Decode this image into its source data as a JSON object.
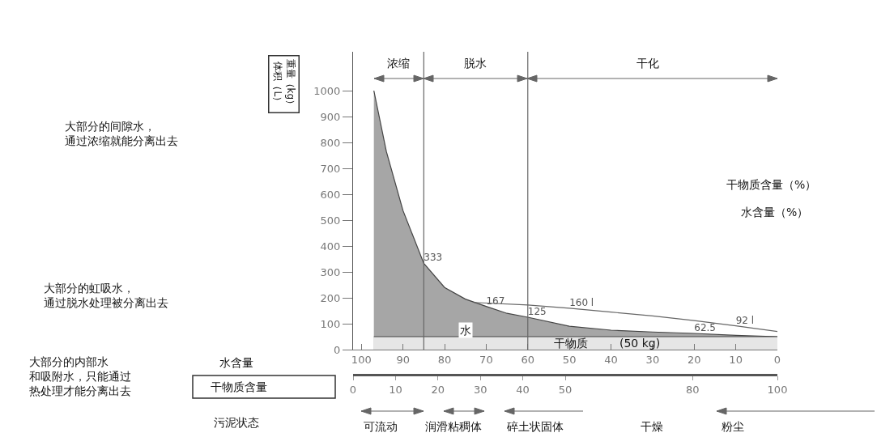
{
  "chart_data": {
    "type": "area",
    "xlabel": "水含量（%）",
    "x2label": "干物质含量（%）",
    "ylabel": "重量（kg）体积（L）",
    "xlim": [
      102,
      0
    ],
    "xticks": [
      100,
      90,
      80,
      70,
      60,
      50,
      40,
      30,
      20,
      10,
      0
    ],
    "x2lim": [
      0,
      100
    ],
    "x2ticks": [
      0,
      10,
      20,
      30,
      40,
      50,
      80,
      100
    ],
    "ylim": [
      0,
      1150
    ],
    "yticks": [
      0,
      100,
      200,
      300,
      400,
      500,
      600,
      700,
      800,
      900,
      1000
    ],
    "series": [
      {
        "color": "#a6a6a6",
        "x": [
          97,
          94,
          90,
          85,
          80,
          75,
          70,
          65,
          60,
          50,
          40,
          30,
          20,
          10,
          0
        ],
        "values": [
          1000,
          765,
          537,
          333,
          240,
          195,
          167,
          140,
          125,
          90,
          75,
          68,
          62.5,
          55,
          50
        ],
        "value_labels": [
          null,
          null,
          null,
          "333",
          null,
          null,
          "167",
          null,
          "125",
          null,
          null,
          null,
          "62.5",
          null,
          null
        ]
      },
      {
        "color": "#e6e6e6",
        "x": [
          97,
          0
        ],
        "values": [
          50,
          50
        ]
      },
      {
        "type": "line",
        "color": "#666666",
        "x": [
          73,
          60,
          50,
          40,
          30,
          20,
          10,
          0
        ],
        "values": [
          182,
          172,
          160,
          145,
          130,
          112,
          92,
          70
        ],
        "value_labels": [
          null,
          null,
          "160 l",
          null,
          null,
          null,
          "92 l",
          null
        ]
      }
    ],
    "ref_lines": [
      {
        "axis": "x",
        "value": 85
      },
      {
        "axis": "x",
        "value": 60
      }
    ],
    "annotations": [
      "大部分的间隙水，通过浓缩就能分离出去",
      "大部分的虹吸水，通过脱水处理被分离出去",
      "大部分的内部水和吸附水，只能通过热处理才能分离出去",
      "水含量",
      "干物质含量",
      "污泥状态",
      "干燥",
      "浓缩",
      "脱水",
      "干化",
      "可流动",
      "润滑粘稠体",
      "碎土状固体",
      "粉尘",
      {
        "text": "水",
        "x": 75,
        "y": 75
      },
      "干物质",
      "(50 kg)"
    ],
    "marker": "none",
    "line_style": "solid"
  }
}
